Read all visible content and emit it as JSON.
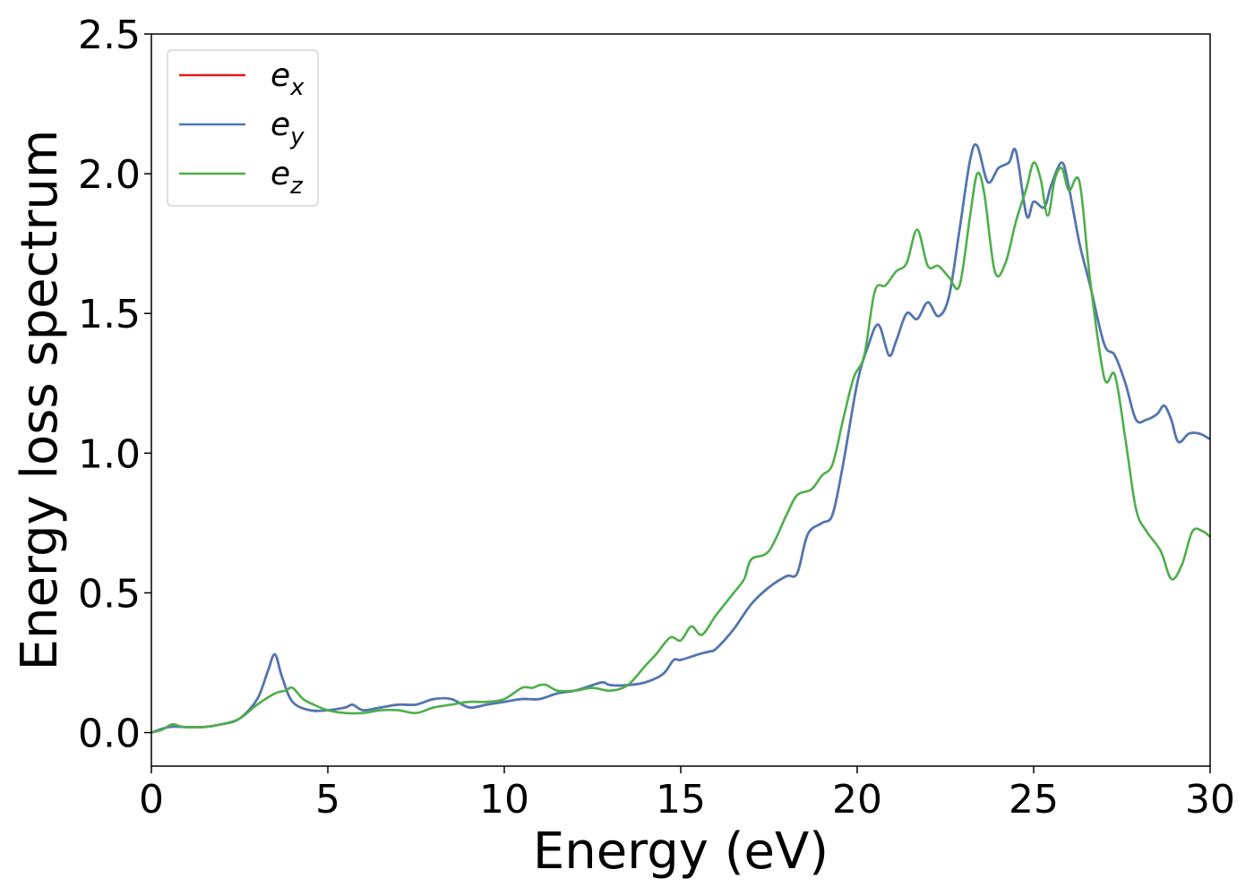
{
  "chart_data": {
    "type": "line",
    "title": "",
    "xlabel": "Energy (eV)",
    "ylabel": "Energy loss spectrum",
    "xlim": [
      0,
      30
    ],
    "ylim": [
      -0.12,
      2.5
    ],
    "xticks": [
      0,
      5,
      10,
      15,
      20,
      25,
      30
    ],
    "xtick_labels": [
      "0",
      "5",
      "10",
      "15",
      "20",
      "25",
      "30"
    ],
    "yticks": [
      0.0,
      0.5,
      1.0,
      1.5,
      2.0,
      2.5
    ],
    "ytick_labels": [
      "0.0",
      "0.5",
      "1.0",
      "1.5",
      "2.0",
      "2.5"
    ],
    "grid": false,
    "legend_position": "top-left",
    "series": [
      {
        "name": "ex",
        "label_base": "e",
        "label_sub": "x",
        "color": "#e41a1c",
        "x": [
          0,
          0.5,
          1,
          1.5,
          2,
          2.5,
          3,
          3.3,
          3.5,
          3.7,
          4,
          4.5,
          5,
          5.5,
          5.7,
          6,
          6.5,
          7,
          7.5,
          8,
          8.5,
          9,
          9.5,
          10,
          10.5,
          11,
          11.5,
          12,
          12.5,
          12.8,
          13,
          13.5,
          14,
          14.5,
          14.8,
          15,
          15.5,
          15.8,
          16,
          16.5,
          17,
          17.5,
          18,
          18.3,
          18.6,
          19,
          19.3,
          19.6,
          20,
          20.3,
          20.6,
          20.9,
          21.1,
          21.4,
          21.7,
          22,
          22.3,
          22.6,
          22.9,
          23.2,
          23.4,
          23.7,
          24,
          24.3,
          24.5,
          24.8,
          25,
          25.3,
          25.5,
          25.8,
          26,
          26.3,
          26.6,
          27,
          27.3,
          27.6,
          27.9,
          28.2,
          28.5,
          28.7,
          28.9,
          29.1,
          29.4,
          29.7,
          30
        ],
        "y": [
          0.0,
          0.02,
          0.02,
          0.02,
          0.03,
          0.05,
          0.12,
          0.22,
          0.28,
          0.2,
          0.11,
          0.08,
          0.08,
          0.09,
          0.1,
          0.08,
          0.09,
          0.1,
          0.1,
          0.12,
          0.12,
          0.09,
          0.1,
          0.11,
          0.12,
          0.12,
          0.14,
          0.15,
          0.17,
          0.18,
          0.17,
          0.17,
          0.18,
          0.21,
          0.26,
          0.26,
          0.28,
          0.29,
          0.3,
          0.37,
          0.46,
          0.52,
          0.56,
          0.57,
          0.71,
          0.75,
          0.78,
          0.96,
          1.25,
          1.38,
          1.46,
          1.35,
          1.4,
          1.5,
          1.48,
          1.54,
          1.49,
          1.56,
          1.8,
          2.05,
          2.1,
          1.97,
          2.02,
          2.04,
          2.08,
          1.85,
          1.9,
          1.88,
          1.96,
          2.04,
          1.95,
          1.75,
          1.6,
          1.39,
          1.35,
          1.25,
          1.12,
          1.12,
          1.14,
          1.17,
          1.12,
          1.04,
          1.07,
          1.07,
          1.05
        ]
      },
      {
        "name": "ey",
        "label_base": "e",
        "label_sub": "y",
        "color": "#4a79b5",
        "x": [
          0,
          0.5,
          1,
          1.5,
          2,
          2.5,
          3,
          3.3,
          3.5,
          3.7,
          4,
          4.5,
          5,
          5.5,
          5.7,
          6,
          6.5,
          7,
          7.5,
          8,
          8.5,
          9,
          9.5,
          10,
          10.5,
          11,
          11.5,
          12,
          12.5,
          12.8,
          13,
          13.5,
          14,
          14.5,
          14.8,
          15,
          15.5,
          15.8,
          16,
          16.5,
          17,
          17.5,
          18,
          18.3,
          18.6,
          19,
          19.3,
          19.6,
          20,
          20.3,
          20.6,
          20.9,
          21.1,
          21.4,
          21.7,
          22,
          22.3,
          22.6,
          22.9,
          23.2,
          23.4,
          23.7,
          24,
          24.3,
          24.5,
          24.8,
          25,
          25.3,
          25.5,
          25.8,
          26,
          26.3,
          26.6,
          27,
          27.3,
          27.6,
          27.9,
          28.2,
          28.5,
          28.7,
          28.9,
          29.1,
          29.4,
          29.7,
          30
        ],
        "y": [
          0.0,
          0.02,
          0.02,
          0.02,
          0.03,
          0.05,
          0.12,
          0.22,
          0.28,
          0.2,
          0.11,
          0.08,
          0.08,
          0.09,
          0.1,
          0.08,
          0.09,
          0.1,
          0.1,
          0.12,
          0.12,
          0.09,
          0.1,
          0.11,
          0.12,
          0.12,
          0.14,
          0.15,
          0.17,
          0.18,
          0.17,
          0.17,
          0.18,
          0.21,
          0.26,
          0.26,
          0.28,
          0.29,
          0.3,
          0.37,
          0.46,
          0.52,
          0.56,
          0.57,
          0.71,
          0.75,
          0.78,
          0.96,
          1.25,
          1.38,
          1.46,
          1.35,
          1.4,
          1.5,
          1.48,
          1.54,
          1.49,
          1.56,
          1.8,
          2.05,
          2.1,
          1.97,
          2.02,
          2.04,
          2.08,
          1.85,
          1.9,
          1.88,
          1.96,
          2.04,
          1.95,
          1.75,
          1.6,
          1.39,
          1.35,
          1.25,
          1.12,
          1.12,
          1.14,
          1.17,
          1.12,
          1.04,
          1.07,
          1.07,
          1.05
        ]
      },
      {
        "name": "ez",
        "label_base": "e",
        "label_sub": "z",
        "color": "#4daf4a",
        "x": [
          0,
          0.3,
          0.6,
          0.9,
          1.5,
          2,
          2.5,
          3,
          3.5,
          3.8,
          4,
          4.3,
          4.6,
          5,
          5.5,
          6,
          6.5,
          7,
          7.5,
          8,
          8.5,
          9,
          9.5,
          10,
          10.5,
          10.8,
          11,
          11.2,
          11.5,
          12,
          12.5,
          13,
          13.5,
          14,
          14.3,
          14.7,
          15,
          15.3,
          15.6,
          16,
          16.5,
          16.8,
          17,
          17.5,
          18,
          18.3,
          18.7,
          19,
          19.3,
          19.6,
          19.9,
          20.2,
          20.5,
          20.8,
          21.1,
          21.4,
          21.7,
          22,
          22.3,
          22.6,
          22.9,
          23.2,
          23.4,
          23.6,
          23.9,
          24.2,
          24.5,
          24.8,
          25,
          25.2,
          25.4,
          25.6,
          25.8,
          26,
          26.3,
          26.6,
          27,
          27.3,
          27.6,
          27.9,
          28.2,
          28.6,
          28.9,
          29.2,
          29.5,
          29.8,
          30
        ],
        "y": [
          0.0,
          0.01,
          0.03,
          0.02,
          0.02,
          0.03,
          0.05,
          0.1,
          0.14,
          0.15,
          0.16,
          0.12,
          0.1,
          0.08,
          0.07,
          0.07,
          0.08,
          0.08,
          0.07,
          0.09,
          0.1,
          0.11,
          0.11,
          0.12,
          0.16,
          0.16,
          0.17,
          0.17,
          0.15,
          0.15,
          0.16,
          0.15,
          0.17,
          0.24,
          0.28,
          0.34,
          0.33,
          0.38,
          0.35,
          0.42,
          0.5,
          0.55,
          0.62,
          0.65,
          0.78,
          0.85,
          0.87,
          0.92,
          0.96,
          1.12,
          1.27,
          1.35,
          1.58,
          1.6,
          1.65,
          1.68,
          1.8,
          1.67,
          1.67,
          1.63,
          1.6,
          1.85,
          2.0,
          1.93,
          1.65,
          1.68,
          1.83,
          1.95,
          2.04,
          1.98,
          1.85,
          1.98,
          2.02,
          1.94,
          1.97,
          1.62,
          1.27,
          1.28,
          1.05,
          0.8,
          0.72,
          0.65,
          0.55,
          0.6,
          0.72,
          0.72,
          0.7
        ]
      }
    ]
  }
}
